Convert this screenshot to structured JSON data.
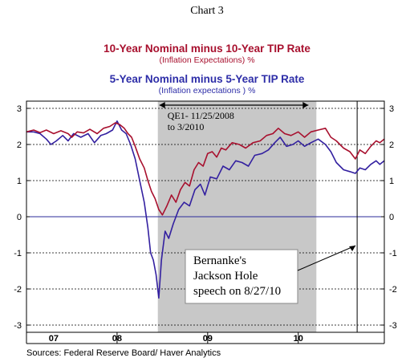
{
  "page_label": "Chart 3",
  "source_note": "Sources:  Federal Reserve Board/ Haver Analytics",
  "colors": {
    "series_10yr": "#a8102e",
    "series_5yr": "#3320a0",
    "shade": "#c8c8c8",
    "zero_line": "#2b2b9a",
    "title_10yr": "#a8102e",
    "title_5yr": "#2e2ea8"
  },
  "chart_data": {
    "type": "line",
    "titles": [
      {
        "text": "10-Year Nominal minus 10-Year TIP Rate",
        "sub": "(Inflation Expectations)  %"
      },
      {
        "text": "5-Year Nominal minus 5-Year TIP Rate",
        "sub": "(Inflation expectations )  %"
      }
    ],
    "ylim": [
      -3.2,
      3.2
    ],
    "yticks": [
      3,
      2,
      1,
      0,
      -1,
      -2,
      -3
    ],
    "xlim": [
      2007.0,
      2010.95
    ],
    "xtick_labels": [
      {
        "label": "07",
        "x": 2007.3
      },
      {
        "label": "08",
        "x": 2008.0
      },
      {
        "label": "09",
        "x": 2009.0
      },
      {
        "label": "10",
        "x": 2010.0
      }
    ],
    "year_dividers": [
      2007.0,
      2008.0,
      2009.0,
      2010.0
    ],
    "grid": "dotted horizontal at integer values",
    "shaded_period": {
      "start": 2008.45,
      "end": 2010.2,
      "label": "QE1- 11/25/2008\nto 3/2010"
    },
    "event_line": {
      "x": 2010.65,
      "label": "Bernanke's\nJackson Hole\nspeech on 8/27/10"
    },
    "series": [
      {
        "name": "10-Year Nominal minus 10-Year TIP Rate",
        "points": [
          [
            2007.0,
            2.35
          ],
          [
            2007.08,
            2.4
          ],
          [
            2007.15,
            2.33
          ],
          [
            2007.22,
            2.4
          ],
          [
            2007.3,
            2.3
          ],
          [
            2007.38,
            2.38
          ],
          [
            2007.46,
            2.3
          ],
          [
            2007.5,
            2.2
          ],
          [
            2007.56,
            2.35
          ],
          [
            2007.63,
            2.32
          ],
          [
            2007.7,
            2.42
          ],
          [
            2007.78,
            2.3
          ],
          [
            2007.85,
            2.45
          ],
          [
            2007.92,
            2.5
          ],
          [
            2007.98,
            2.6
          ],
          [
            2008.03,
            2.55
          ],
          [
            2008.08,
            2.45
          ],
          [
            2008.12,
            2.3
          ],
          [
            2008.16,
            2.2
          ],
          [
            2008.2,
            1.95
          ],
          [
            2008.25,
            1.6
          ],
          [
            2008.3,
            1.35
          ],
          [
            2008.34,
            1.0
          ],
          [
            2008.38,
            0.7
          ],
          [
            2008.42,
            0.5
          ],
          [
            2008.46,
            0.2
          ],
          [
            2008.5,
            0.05
          ],
          [
            2008.55,
            0.3
          ],
          [
            2008.6,
            0.6
          ],
          [
            2008.65,
            0.4
          ],
          [
            2008.7,
            0.75
          ],
          [
            2008.75,
            0.95
          ],
          [
            2008.8,
            0.85
          ],
          [
            2008.85,
            1.3
          ],
          [
            2008.9,
            1.5
          ],
          [
            2008.95,
            1.4
          ],
          [
            2009.0,
            1.75
          ],
          [
            2009.05,
            1.8
          ],
          [
            2009.1,
            1.65
          ],
          [
            2009.15,
            1.9
          ],
          [
            2009.2,
            1.85
          ],
          [
            2009.27,
            2.05
          ],
          [
            2009.35,
            2.0
          ],
          [
            2009.42,
            1.9
          ],
          [
            2009.5,
            2.05
          ],
          [
            2009.58,
            2.1
          ],
          [
            2009.65,
            2.25
          ],
          [
            2009.72,
            2.3
          ],
          [
            2009.78,
            2.45
          ],
          [
            2009.85,
            2.3
          ],
          [
            2009.92,
            2.25
          ],
          [
            2010.0,
            2.35
          ],
          [
            2010.07,
            2.2
          ],
          [
            2010.14,
            2.35
          ],
          [
            2010.22,
            2.4
          ],
          [
            2010.3,
            2.45
          ],
          [
            2010.36,
            2.2
          ],
          [
            2010.42,
            2.1
          ],
          [
            2010.5,
            1.9
          ],
          [
            2010.57,
            1.8
          ],
          [
            2010.63,
            1.6
          ],
          [
            2010.68,
            1.85
          ],
          [
            2010.74,
            1.75
          ],
          [
            2010.8,
            1.95
          ],
          [
            2010.86,
            2.1
          ],
          [
            2010.9,
            2.05
          ],
          [
            2010.95,
            2.15
          ]
        ]
      },
      {
        "name": "5-Year Nominal minus 5-Year TIP Rate",
        "points": [
          [
            2007.0,
            2.35
          ],
          [
            2007.08,
            2.35
          ],
          [
            2007.15,
            2.3
          ],
          [
            2007.22,
            2.15
          ],
          [
            2007.27,
            2.0
          ],
          [
            2007.33,
            2.1
          ],
          [
            2007.4,
            2.25
          ],
          [
            2007.46,
            2.1
          ],
          [
            2007.52,
            2.3
          ],
          [
            2007.6,
            2.2
          ],
          [
            2007.68,
            2.3
          ],
          [
            2007.75,
            2.05
          ],
          [
            2007.82,
            2.25
          ],
          [
            2007.88,
            2.3
          ],
          [
            2007.95,
            2.4
          ],
          [
            2008.0,
            2.65
          ],
          [
            2008.05,
            2.4
          ],
          [
            2008.1,
            2.3
          ],
          [
            2008.15,
            2.0
          ],
          [
            2008.2,
            1.6
          ],
          [
            2008.25,
            1.0
          ],
          [
            2008.3,
            0.4
          ],
          [
            2008.34,
            -0.3
          ],
          [
            2008.37,
            -1.0
          ],
          [
            2008.4,
            -1.2
          ],
          [
            2008.43,
            -1.6
          ],
          [
            2008.46,
            -2.25
          ],
          [
            2008.49,
            -1.2
          ],
          [
            2008.53,
            -0.4
          ],
          [
            2008.57,
            -0.6
          ],
          [
            2008.62,
            -0.2
          ],
          [
            2008.68,
            0.2
          ],
          [
            2008.74,
            0.4
          ],
          [
            2008.8,
            0.3
          ],
          [
            2008.86,
            0.75
          ],
          [
            2008.92,
            0.9
          ],
          [
            2008.97,
            0.6
          ],
          [
            2009.03,
            1.1
          ],
          [
            2009.1,
            1.05
          ],
          [
            2009.17,
            1.4
          ],
          [
            2009.24,
            1.3
          ],
          [
            2009.31,
            1.55
          ],
          [
            2009.38,
            1.5
          ],
          [
            2009.45,
            1.4
          ],
          [
            2009.52,
            1.7
          ],
          [
            2009.6,
            1.75
          ],
          [
            2009.67,
            1.85
          ],
          [
            2009.74,
            2.05
          ],
          [
            2009.8,
            2.2
          ],
          [
            2009.87,
            1.95
          ],
          [
            2009.94,
            2.0
          ],
          [
            2010.0,
            2.1
          ],
          [
            2010.07,
            1.95
          ],
          [
            2010.14,
            2.05
          ],
          [
            2010.22,
            2.15
          ],
          [
            2010.3,
            2.0
          ],
          [
            2010.36,
            1.8
          ],
          [
            2010.42,
            1.5
          ],
          [
            2010.5,
            1.3
          ],
          [
            2010.57,
            1.25
          ],
          [
            2010.63,
            1.2
          ],
          [
            2010.68,
            1.35
          ],
          [
            2010.74,
            1.3
          ],
          [
            2010.8,
            1.45
          ],
          [
            2010.86,
            1.55
          ],
          [
            2010.9,
            1.45
          ],
          [
            2010.95,
            1.55
          ]
        ]
      }
    ]
  }
}
